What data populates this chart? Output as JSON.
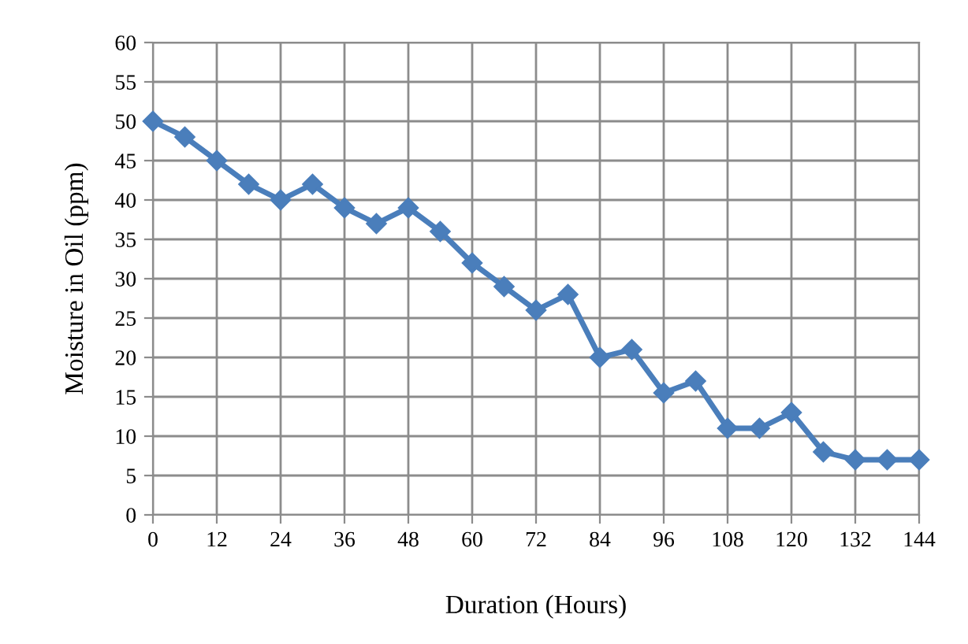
{
  "chart_data": {
    "type": "line",
    "xlabel": "Duration (Hours)",
    "ylabel": "Moisture in Oil (ppm)",
    "x": [
      0,
      6,
      12,
      18,
      24,
      30,
      36,
      42,
      48,
      54,
      60,
      66,
      72,
      78,
      84,
      90,
      96,
      102,
      108,
      114,
      120,
      126,
      132,
      138,
      144
    ],
    "series": [
      {
        "color": "#4a7ebb",
        "values": [
          50,
          48,
          45,
          42,
          40,
          42,
          39,
          37,
          39,
          36,
          32,
          29,
          26,
          28,
          20,
          21,
          15.5,
          17,
          11,
          11,
          13,
          8,
          7,
          7,
          7
        ]
      }
    ],
    "xlim": [
      0,
      144
    ],
    "xticks": [
      0,
      12,
      24,
      36,
      48,
      60,
      72,
      84,
      96,
      108,
      120,
      132,
      144
    ],
    "ylim": [
      0,
      60
    ],
    "yticks": [
      0,
      5,
      10,
      15,
      20,
      25,
      30,
      35,
      40,
      45,
      50,
      55,
      60
    ],
    "grid": true,
    "marker": "diamond",
    "line_style": "solid"
  }
}
